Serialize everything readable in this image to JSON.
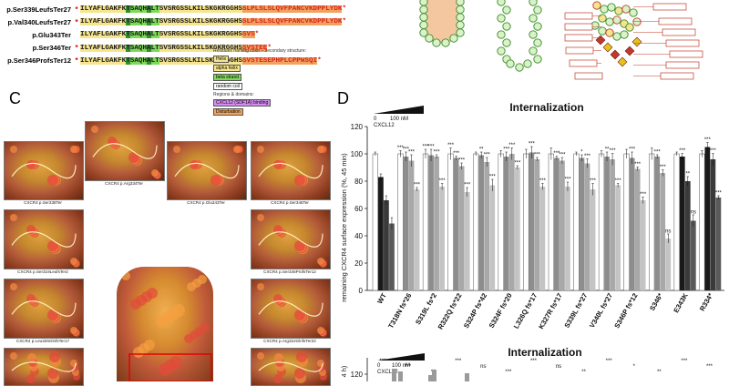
{
  "panel_b": {
    "rows": [
      {
        "label": "p.Ser339LeufsTer27",
        "mark": "*",
        "sequence": "ILYAFLGAKFKTSAQHALTSVSRGSSLKILSKGKRGGHSSLPLSLSLQVFPANCVKDPPLYDK*"
      },
      {
        "label": "p.Val340LeufsTer27",
        "mark": "*",
        "sequence": "ILYAFLGAKFKTSAQHALTSVSRGSSLKILSKGKRGGHSSLPLSLSLQVFPANCVKDPPLYDK*"
      },
      {
        "label": "p.Glu343Ter",
        "mark": "",
        "sequence": "ILYAFLGAKFKTSAQHALTSVSRGSSLKILSKGKRGGHSSVS*"
      },
      {
        "label": "p.Ser346Ter",
        "mark": "*",
        "sequence": "ILYAFLGAKFKTSAQHALTSVSRGSSLKILSKGKRGGHSSVSTEE*"
      },
      {
        "label": "p.Ser346ProfsTer12",
        "mark": "*",
        "sequence": "ILYAFLGAKFKTSAQHALTSVSRGSSLKILSKGKRGGHSSVSTESEPHPLCPPWSQI*"
      }
    ],
    "legend": {
      "title": "Residues framing color – secondary structure:",
      "items": [
        "Helix",
        "alpha helix",
        "beta strand",
        "random coil"
      ],
      "regions_title": "Regions & domains:",
      "regions": [
        "CXCL12 (SDF1A) binding",
        "Disturbation"
      ]
    }
  },
  "panel_c": {
    "letter": "C",
    "captions": [
      "CXCR4 p.Ser338Ter",
      "CXCR4 p.Arg334Ter",
      "CXCR4 p.Glu343Ter",
      "CXCR4 p.Ser346Ter",
      "CXCR4 p.Ser319LeufsTer2",
      "CXCR4 p.Ser346ProfsTer12",
      "CXCR4 p.Leu326GlnfsTer17",
      "CXCR4 p.Arg322GlnfsTer22"
    ]
  },
  "panel_d": {
    "letter": "D",
    "legend_dose": "100 nM",
    "legend_label": "CXCL12",
    "chart_data": [
      {
        "type": "bar",
        "title": "Internalization",
        "ylabel": "remaining CXCR4 surface expression (%, 45 min)",
        "ylim": [
          0,
          120
        ],
        "yticks": [
          0,
          20,
          40,
          60,
          80,
          100,
          120
        ],
        "categories": [
          "WT",
          "T318N fs*26",
          "S319L fs*2",
          "R322Q fs*22",
          "S324P fs*42",
          "S324F fs*20",
          "L326Q fs*17",
          "K327R fs*17",
          "S339L fs*27",
          "V340L fs*27",
          "S346P fs*12",
          "S346*",
          "E343K",
          "R334*"
        ],
        "series": [
          {
            "values": [
              100,
              100,
              100,
              100,
              100,
              100,
              100,
              100,
              100,
              100,
              100,
              100,
              100,
              100
            ]
          },
          {
            "values": [
              83,
              98,
              99,
              97,
              99,
              98,
              101,
              97,
              97,
              98,
              97,
              98,
              98,
              105
            ]
          },
          {
            "values": [
              66,
              95,
              98,
              91,
              94,
              100,
              96,
              95,
              93,
              96,
              89,
              86,
              80,
              96
            ]
          },
          {
            "values": [
              49,
              74,
              76,
              72,
              77,
              90,
              76,
              76,
              74,
              77,
              66,
              38,
              51,
              68
            ]
          }
        ],
        "significance": [
          [
            "",
            "***",
            "***",
            "***",
            "",
            "",
            "",
            "",
            "",
            "",
            "",
            "",
            "",
            ""
          ],
          [
            "",
            "***",
            "***",
            "***",
            "**",
            "***",
            "***",
            "***",
            "*",
            "**",
            "***",
            "***",
            "***",
            "***"
          ],
          [
            "",
            "***",
            "***",
            "***",
            "***",
            "***",
            "***",
            "***",
            "***",
            "***",
            "***",
            "***",
            "**",
            "***"
          ],
          [
            "",
            "***",
            "***",
            "***",
            "***",
            "***",
            "***",
            "***",
            "***",
            "***",
            "***",
            "ns",
            "ns",
            "***"
          ]
        ]
      },
      {
        "type": "bar",
        "title": "Internalization",
        "ylabel": "4 h)",
        "yticks": [
          100,
          120
        ],
        "significance_visible": [
          "***",
          "***",
          "**",
          "***",
          "ns",
          "***",
          "***",
          "ns",
          "**",
          "***",
          "*",
          "**",
          "***",
          "***"
        ]
      }
    ]
  },
  "colors": {
    "helix": "#f6e58d",
    "beta": "#7ed957",
    "coil": "#ffffff",
    "disturbed": "#f0a35e",
    "red_text": "#d7261e",
    "bar_light": "#b8b8b8",
    "bar_dark": "#3a3a3a"
  }
}
